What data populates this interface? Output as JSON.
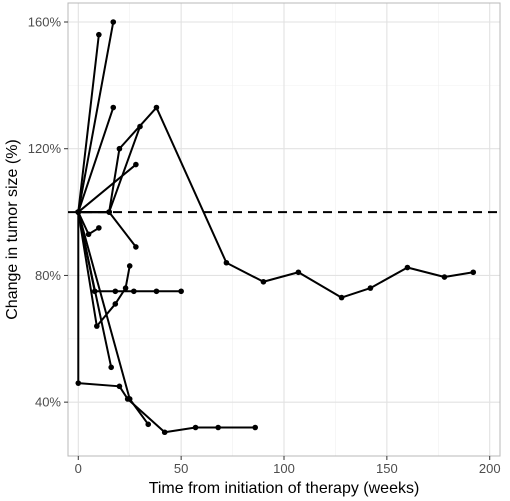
{
  "chart_data": {
    "type": "line",
    "title": "",
    "xlabel": "Time from initiation of therapy (weeks)",
    "ylabel": "Change in tumor size (%)",
    "xlim": [
      -5,
      205
    ],
    "ylim": [
      23,
      166
    ],
    "x_ticks": [
      0,
      50,
      100,
      150,
      200
    ],
    "y_ticks": [
      40,
      80,
      120,
      160
    ],
    "y_tick_labels": [
      "40%",
      "80%",
      "120%",
      "160%"
    ],
    "grid": true,
    "reference_line": {
      "y": 100,
      "style": "dashed"
    },
    "line_color": "#000000",
    "series": [
      {
        "x": [
          0,
          10
        ],
        "y": [
          100,
          156
        ]
      },
      {
        "x": [
          0,
          17
        ],
        "y": [
          100,
          160
        ]
      },
      {
        "x": [
          0,
          17
        ],
        "y": [
          100,
          133
        ]
      },
      {
        "x": [
          0,
          15,
          30
        ],
        "y": [
          100,
          100,
          127
        ]
      },
      {
        "x": [
          0,
          15,
          20,
          38,
          72,
          90,
          107,
          128,
          142,
          160,
          178,
          192
        ],
        "y": [
          100,
          100,
          120,
          133,
          84,
          78,
          81,
          73,
          76,
          82.5,
          79.5,
          81
        ]
      },
      {
        "x": [
          0,
          28
        ],
        "y": [
          100,
          115
        ]
      },
      {
        "x": [
          0,
          15,
          28
        ],
        "y": [
          100,
          100,
          89
        ]
      },
      {
        "x": [
          0,
          5,
          10
        ],
        "y": [
          100,
          93,
          95
        ]
      },
      {
        "x": [
          0,
          8,
          18,
          27,
          38,
          50
        ],
        "y": [
          100,
          75,
          75,
          75,
          75,
          75
        ]
      },
      {
        "x": [
          0,
          9,
          18,
          23,
          25
        ],
        "y": [
          100,
          64,
          71,
          76,
          83
        ]
      },
      {
        "x": [
          0,
          16
        ],
        "y": [
          100,
          51
        ]
      },
      {
        "x": [
          0,
          25,
          34
        ],
        "y": [
          100,
          41,
          33
        ]
      },
      {
        "x": [
          0,
          0,
          20,
          24,
          42,
          57,
          68,
          86
        ],
        "y": [
          100,
          46,
          45,
          41,
          30.5,
          32,
          32,
          32
        ]
      }
    ]
  }
}
